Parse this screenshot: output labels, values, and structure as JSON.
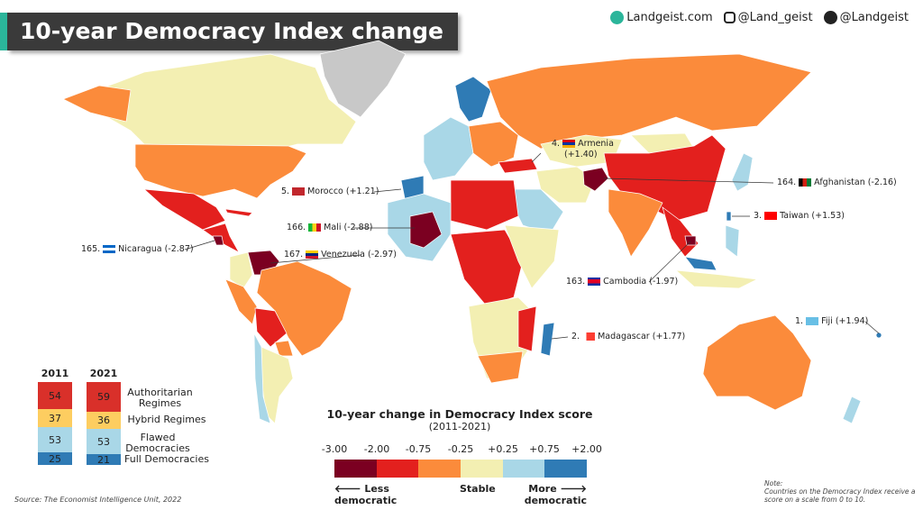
{
  "title": "10-year Democracy Index change",
  "social": {
    "website": "Landgeist.com",
    "instagram": "@Land_geist",
    "twitter": "@Landgeist",
    "icons": [
      "globe-icon",
      "instagram-icon",
      "twitter-icon"
    ]
  },
  "colors": {
    "cat1": "#7b0021",
    "cat2": "#e3201e",
    "cat3": "#fb8b3b",
    "cat4": "#f3efb2",
    "cat5": "#a9d7e7",
    "cat6": "#2f7bb5",
    "no_data": "#c8c8c8",
    "authoritarian": "#d9302a",
    "hybrid": "#fdcd60",
    "flawed": "#a9d7e7",
    "full": "#2f7bb5"
  },
  "callouts": [
    {
      "rank": "5.",
      "country": "Morocco",
      "change": "(+1.21)",
      "flag": [
        "#c1272d",
        "#006233"
      ]
    },
    {
      "rank": "166.",
      "country": "Mali",
      "change": "(-2.88)",
      "flag": [
        "#14b53a",
        "#fcd116",
        "#ce1126"
      ]
    },
    {
      "rank": "165.",
      "country": "Nicaragua",
      "change": "(-2.87)",
      "flag": [
        "#0067c6",
        "#ffffff",
        "#0067c6"
      ]
    },
    {
      "rank": "167.",
      "country": "Venezuela",
      "change": "(-2.97)",
      "flag": [
        "#ffcc00",
        "#00247d",
        "#cf142b"
      ]
    },
    {
      "rank": "4.",
      "country": "Armenia",
      "change": "(+1.40)",
      "flag": [
        "#d90012",
        "#0033a0",
        "#f2a800"
      ]
    },
    {
      "rank": "164.",
      "country": "Afghanistan",
      "change": "(-2.16)",
      "flag": [
        "#000000",
        "#d32011",
        "#007a36"
      ]
    },
    {
      "rank": "3.",
      "country": "Taiwan",
      "change": "(+1.53)",
      "flag": [
        "#fe0000",
        "#000095"
      ]
    },
    {
      "rank": "163.",
      "country": "Cambodia",
      "change": "(-1.97)",
      "flag": [
        "#032ea1",
        "#e00025",
        "#032ea1"
      ]
    },
    {
      "rank": "2.",
      "country": "Madagascar",
      "change": "(+1.77)",
      "flag": [
        "#ffffff",
        "#fc3d32",
        "#007e3a"
      ]
    },
    {
      "rank": "1.",
      "country": "Fiji",
      "change": "(+1.94)",
      "flag": [
        "#68bfe5",
        "#002868"
      ]
    }
  ],
  "regimes": {
    "years": [
      "2011",
      "2021"
    ],
    "categories": [
      {
        "label": "Authoritarian Regimes",
        "y2011": "54",
        "y2021": "59"
      },
      {
        "label": "Hybrid Regimes",
        "y2011": "37",
        "y2021": "36"
      },
      {
        "label": "Flawed Democracies",
        "y2011": "53",
        "y2021": "53"
      },
      {
        "label": "Full Democracies",
        "y2011": "25",
        "y2021": "21"
      }
    ]
  },
  "legend": {
    "title": "10-year change in Democracy Index score",
    "subtitle": "(2011-2021)",
    "ticks": [
      "-3.00",
      "-2.00",
      "-0.75",
      "-0.25",
      "+0.25",
      "+0.75",
      "+2.00"
    ],
    "less": "🡐 Less democratic",
    "stable": "Stable",
    "more": "More 🡒 democratic"
  },
  "source": "Source: The Economist Intelligence Unit, 2022",
  "note": {
    "heading": "Note:",
    "text": "Countries on the Democracy Index receive a score on a scale from 0 to 10."
  }
}
